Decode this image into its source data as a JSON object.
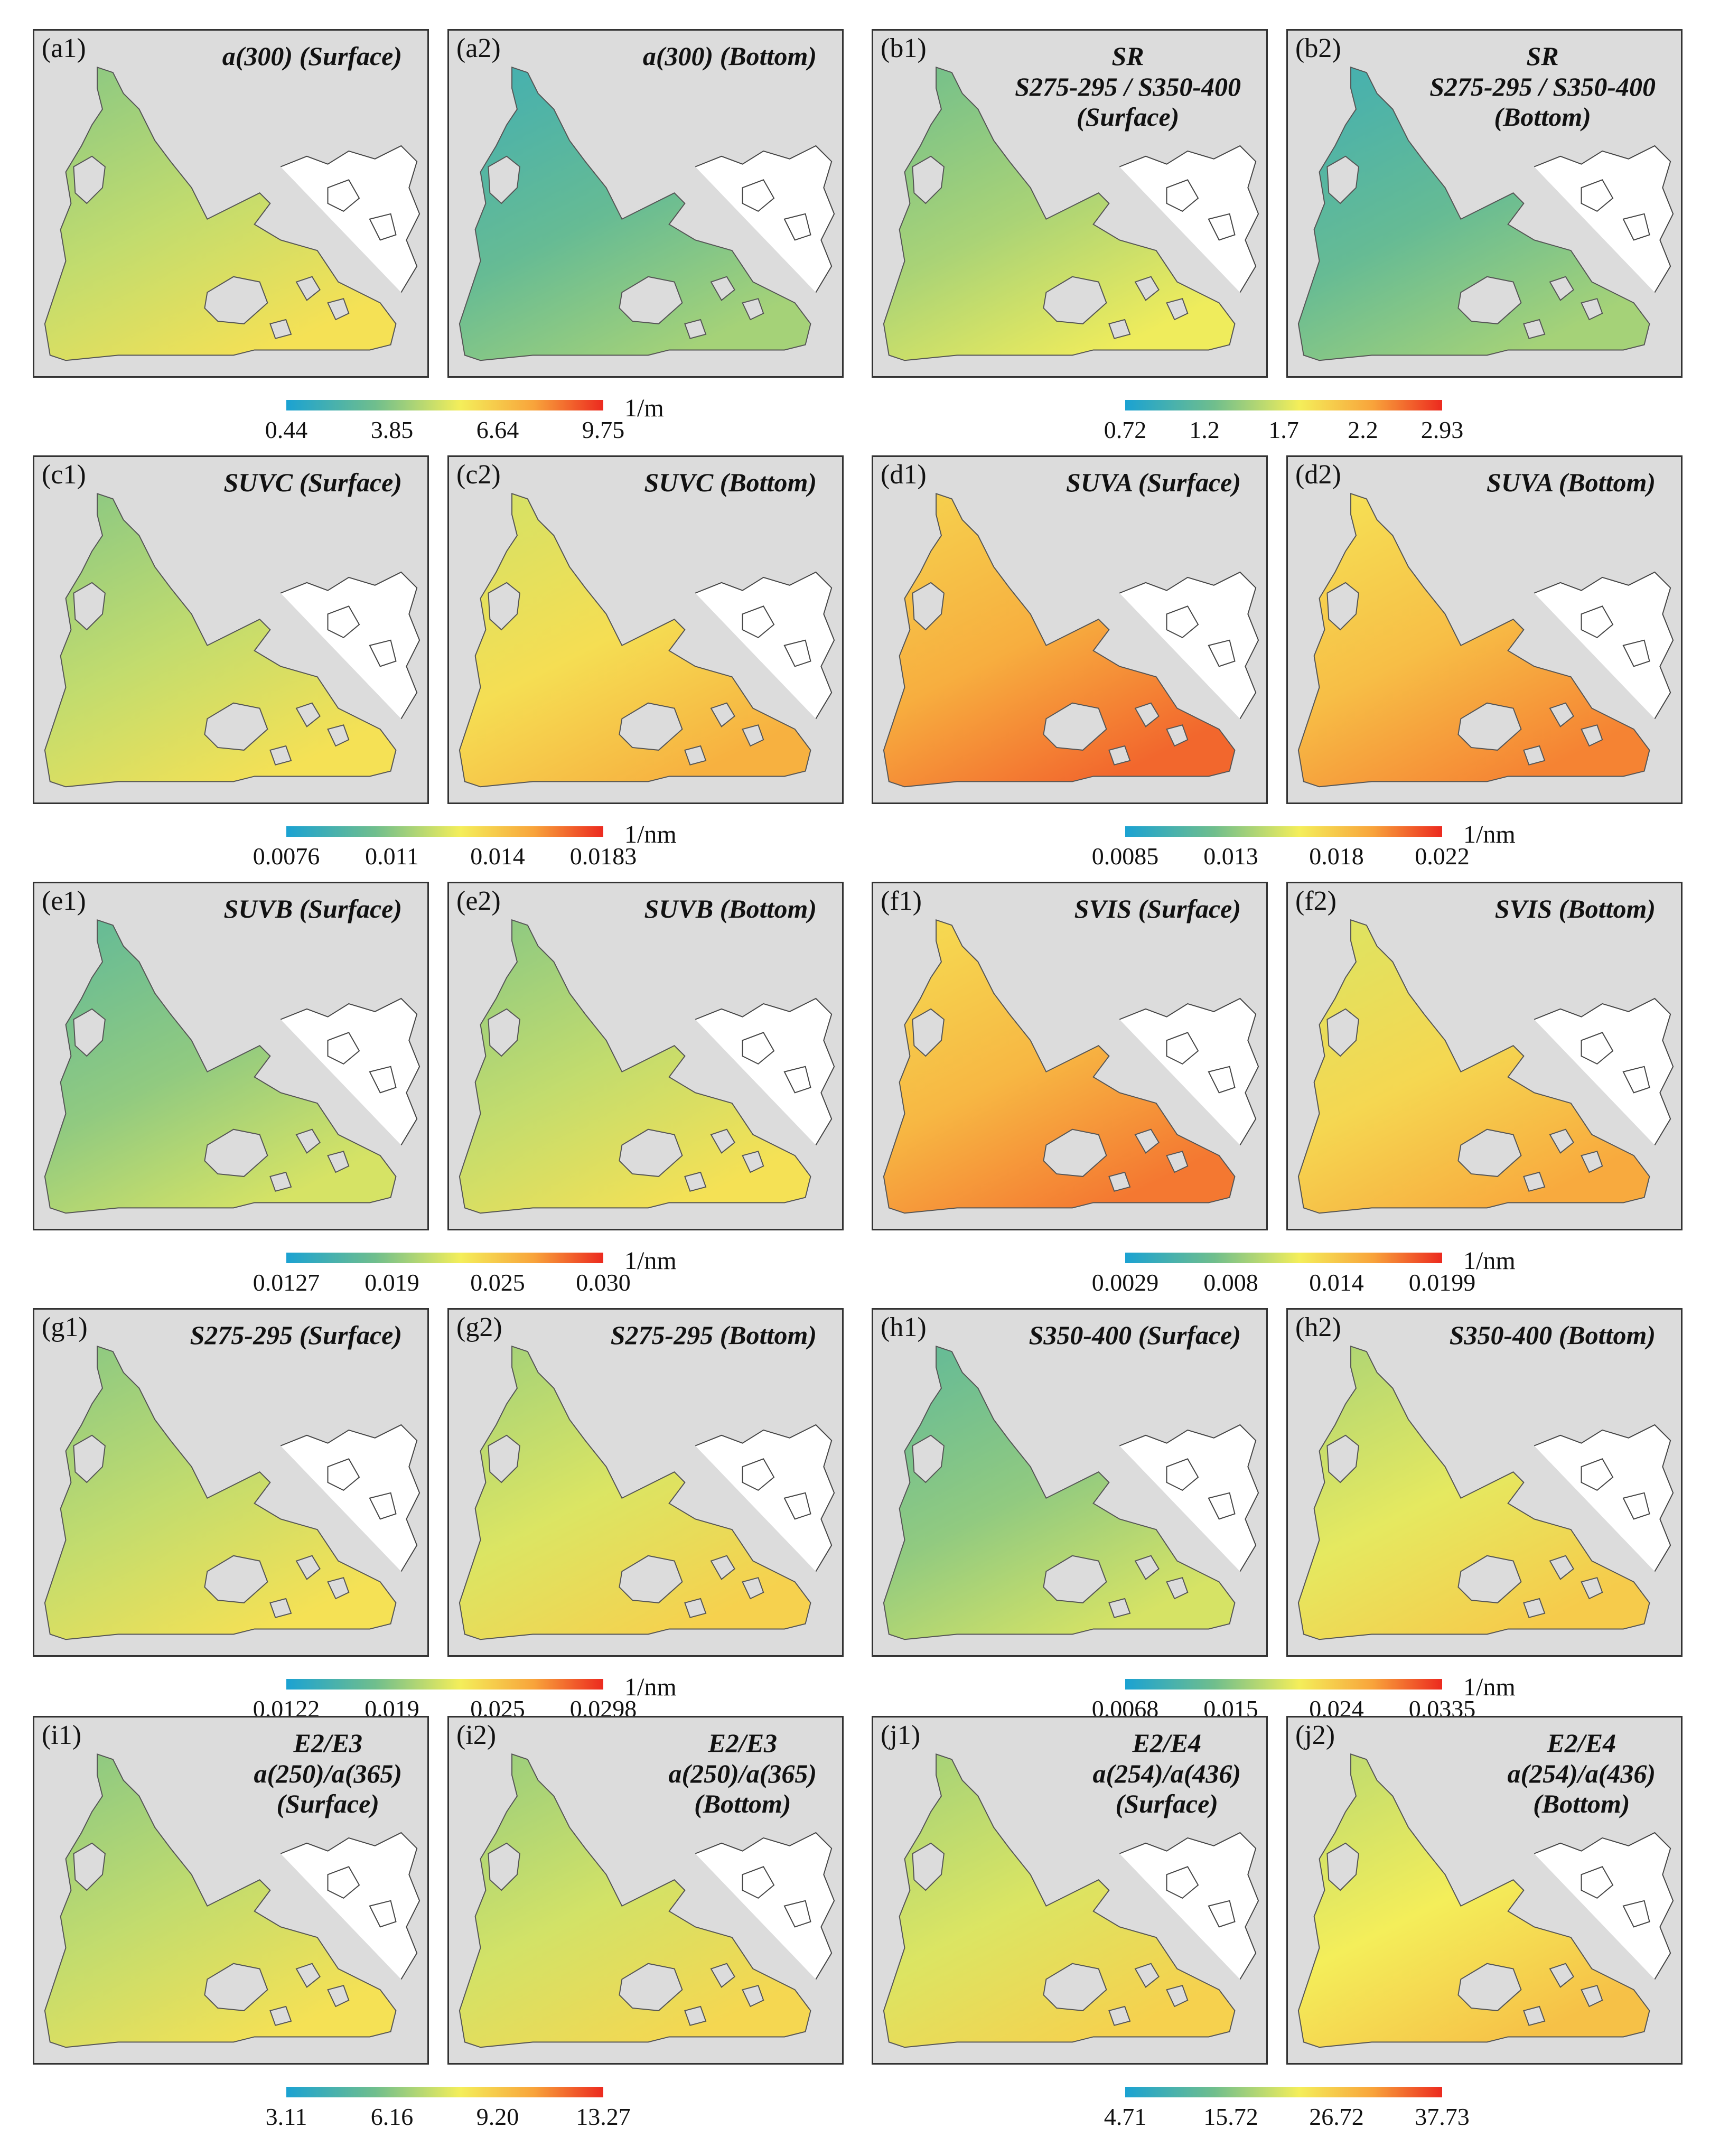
{
  "colors": {
    "low": "#1ba2d2",
    "mid_low": "#6fbe8d",
    "mid": "#f4ee5a",
    "mid_high": "#f8a43b",
    "high": "#ec2a1f",
    "land": "#dcdcdc"
  },
  "rows": [
    {
      "left": {
        "panels": [
          {
            "label": "(a1)",
            "title": [
              "a(300) (Surface)"
            ],
            "level": 0.45
          },
          {
            "label": "(a2)",
            "title": [
              "a(300) (Bottom)"
            ],
            "level": 0.25
          }
        ],
        "ticks": [
          "0.44",
          "3.85",
          "6.64",
          "9.75"
        ],
        "unit": "1/m"
      },
      "right": {
        "panels": [
          {
            "label": "(b1)",
            "title": [
              "SR",
              "S275-295 / S350-400",
              "(Surface)"
            ],
            "level": 0.4
          },
          {
            "label": "(b2)",
            "title": [
              "SR",
              "S275-295 / S350-400",
              "(Bottom)"
            ],
            "level": 0.25
          }
        ],
        "ticks": [
          "0.72",
          "1.2",
          "1.7",
          "2.2",
          "2.93"
        ],
        "unit": ""
      }
    },
    {
      "left": {
        "panels": [
          {
            "label": "(c1)",
            "title": [
              "SUVC (Surface)"
            ],
            "level": 0.45
          },
          {
            "label": "(c2)",
            "title": [
              "SUVC (Bottom)"
            ],
            "level": 0.6
          }
        ],
        "ticks": [
          "0.0076",
          "0.011",
          "0.014",
          "0.0183"
        ],
        "unit": "1/nm"
      },
      "right": {
        "panels": [
          {
            "label": "(d1)",
            "title": [
              "SUVA (Surface)"
            ],
            "level": 0.75
          },
          {
            "label": "(d2)",
            "title": [
              "SUVA (Bottom)"
            ],
            "level": 0.7
          }
        ],
        "ticks": [
          "0.0085",
          "0.013",
          "0.018",
          "0.022"
        ],
        "unit": "1/nm"
      }
    },
    {
      "left": {
        "panels": [
          {
            "label": "(e1)",
            "title": [
              "SUVB (Surface)"
            ],
            "level": 0.35
          },
          {
            "label": "(e2)",
            "title": [
              "SUVB (Bottom)"
            ],
            "level": 0.45
          }
        ],
        "ticks": [
          "0.0127",
          "0.019",
          "0.025",
          "0.030"
        ],
        "unit": "1/nm"
      },
      "right": {
        "panels": [
          {
            "label": "(f1)",
            "title": [
              "SVIS (Surface)"
            ],
            "level": 0.72
          },
          {
            "label": "(f2)",
            "title": [
              "SVIS (Bottom)"
            ],
            "level": 0.62
          }
        ],
        "ticks": [
          "0.0029",
          "0.008",
          "0.014",
          "0.0199"
        ],
        "unit": "1/nm"
      }
    },
    {
      "left": {
        "panels": [
          {
            "label": "(g1)",
            "title": [
              "S275-295 (Surface)"
            ],
            "level": 0.45
          },
          {
            "label": "(g2)",
            "title": [
              "S275-295 (Bottom)"
            ],
            "level": 0.5
          }
        ],
        "ticks": [
          "0.0122",
          "0.019",
          "0.025",
          "0.0298"
        ],
        "unit": "1/nm"
      },
      "right": {
        "panels": [
          {
            "label": "(h1)",
            "title": [
              "S350-400 (Surface)"
            ],
            "level": 0.35
          },
          {
            "label": "(h2)",
            "title": [
              "S350-400 (Bottom)"
            ],
            "level": 0.52
          }
        ],
        "ticks": [
          "0.0068",
          "0.015",
          "0.024",
          "0.0335"
        ],
        "unit": "1/nm"
      }
    },
    {
      "left": {
        "panels": [
          {
            "label": "(i1)",
            "title": [
              "E2/E3",
              "a(250)/a(365)",
              "(Surface)"
            ],
            "level": 0.45
          },
          {
            "label": "(i2)",
            "title": [
              "E2/E3",
              "a(250)/a(365)",
              "(Bottom)"
            ],
            "level": 0.48
          }
        ],
        "ticks": [
          "3.11",
          "6.16",
          "9.20",
          "13.27"
        ],
        "unit": ""
      },
      "right": {
        "panels": [
          {
            "label": "(j1)",
            "title": [
              "E2/E4",
              "a(254)/a(436)",
              "(Surface)"
            ],
            "level": 0.5
          },
          {
            "label": "(j2)",
            "title": [
              "E2/E4",
              "a(254)/a(436)",
              "(Bottom)"
            ],
            "level": 0.55
          }
        ],
        "ticks": [
          "4.71",
          "15.72",
          "26.72",
          "37.73"
        ],
        "unit": ""
      }
    }
  ]
}
